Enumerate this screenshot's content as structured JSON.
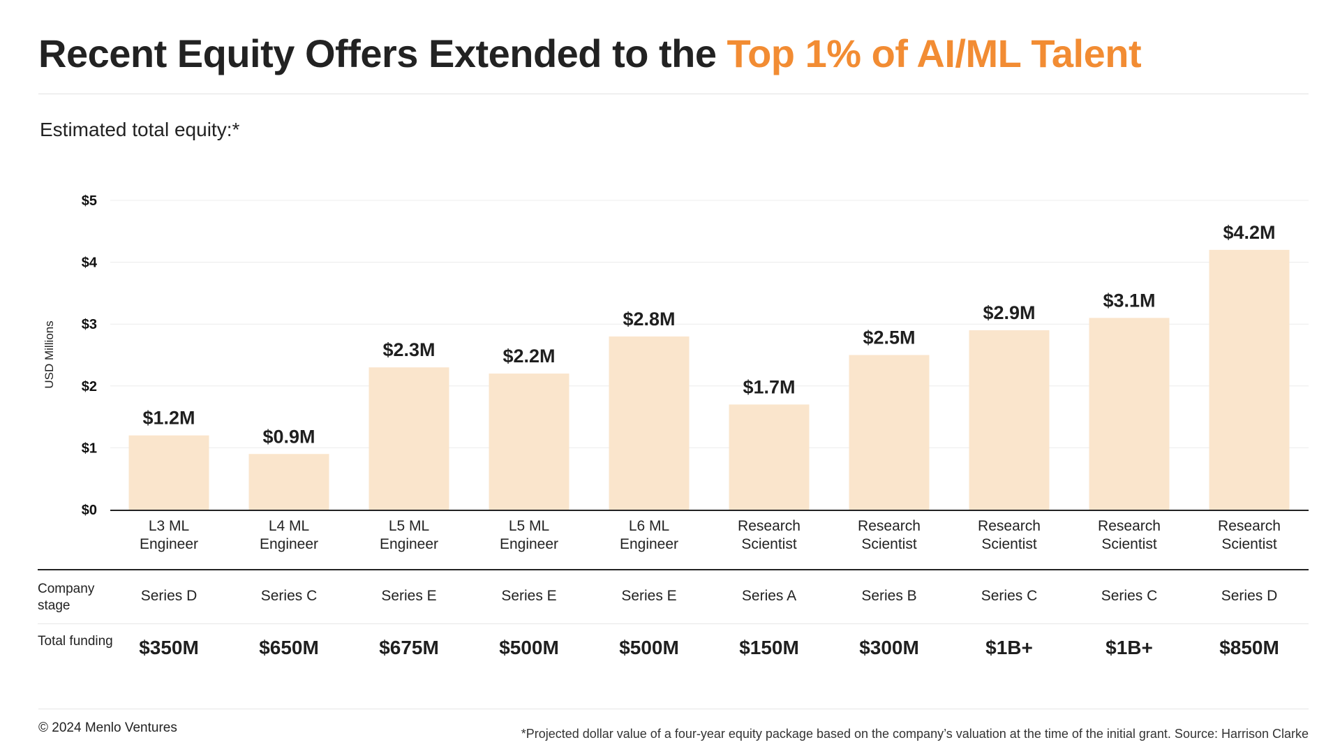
{
  "title": {
    "main": "Recent Equity Offers Extended to the ",
    "accent": "Top 1% of AI/ML Talent"
  },
  "subtitle": "Estimated total equity:*",
  "colors": {
    "accent": "#f28c33",
    "bar": "#fae5cc",
    "title": "#222222"
  },
  "chart_data": {
    "type": "bar",
    "ylabel": "USD Millions",
    "ylim": [
      0,
      5
    ],
    "yticks": [
      {
        "value": 0,
        "label": "$0"
      },
      {
        "value": 1,
        "label": "$1"
      },
      {
        "value": 2,
        "label": "$2"
      },
      {
        "value": 3,
        "label": "$3"
      },
      {
        "value": 4,
        "label": "$4"
      },
      {
        "value": 5,
        "label": "$5"
      }
    ],
    "grid": true,
    "categories": [
      [
        "L3 ML",
        "Engineer"
      ],
      [
        "L4 ML",
        "Engineer"
      ],
      [
        "L5 ML",
        "Engineer"
      ],
      [
        "L5 ML",
        "Engineer"
      ],
      [
        "L6 ML",
        "Engineer"
      ],
      [
        "Research",
        "Scientist"
      ],
      [
        "Research",
        "Scientist"
      ],
      [
        "Research",
        "Scientist"
      ],
      [
        "Research",
        "Scientist"
      ],
      [
        "Research",
        "Scientist"
      ]
    ],
    "values": [
      1.2,
      0.9,
      2.3,
      2.2,
      2.8,
      1.7,
      2.5,
      2.9,
      3.1,
      4.2
    ],
    "data_labels": [
      "$1.2M",
      "$0.9M",
      "$2.3M",
      "$2.2M",
      "$2.8M",
      "$1.7M",
      "$2.5M",
      "$2.9M",
      "$3.1M",
      "$4.2M"
    ]
  },
  "table": {
    "company_stage_label": "Company stage",
    "company_stage": [
      "Series D",
      "Series C",
      "Series E",
      "Series E",
      "Series E",
      "Series A",
      "Series B",
      "Series C",
      "Series C",
      "Series D"
    ],
    "total_funding_label": "Total funding",
    "total_funding": [
      "$350M",
      "$650M",
      "$675M",
      "$500M",
      "$500M",
      "$150M",
      "$300M",
      "$1B+",
      "$1B+",
      "$850M"
    ]
  },
  "footer": {
    "copyright": "© 2024 Menlo Ventures",
    "footnote": "*Projected dollar value of a four-year equity package based on the company’s valuation at the time of the initial grant. Source: Harrison Clarke"
  }
}
